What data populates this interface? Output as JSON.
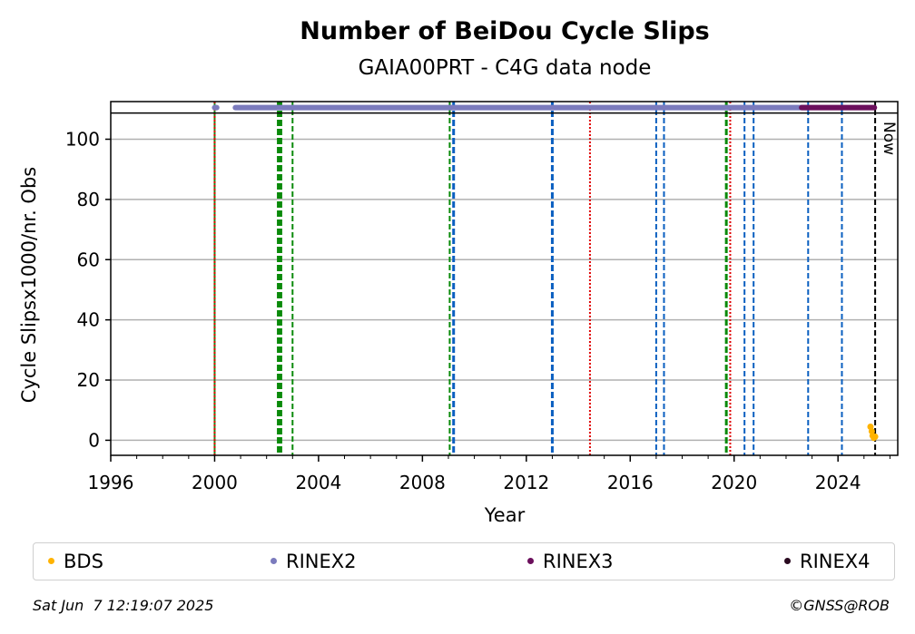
{
  "chart_data": {
    "type": "scatter",
    "title": "Number of BeiDou Cycle Slips",
    "subtitle": "GAIA00PRT - C4G data node",
    "xlabel": "Year",
    "ylabel": "Cycle Slipsx1000/nr. Obs",
    "xlim": [
      1996,
      2026.3
    ],
    "ylim": [
      -5,
      112.5
    ],
    "x_ticks": [
      1996,
      2000,
      2004,
      2008,
      2012,
      2016,
      2020,
      2024
    ],
    "y_ticks": [
      0,
      20,
      40,
      60,
      80,
      100
    ],
    "grid": "horizontal",
    "legend_position": "bottom",
    "now_label": "Now",
    "now_x": 2025.43,
    "top_band_y": 110.5,
    "series": [
      {
        "name": "BDS",
        "color": "#ffb300",
        "points": [
          [
            2025.25,
            4.5
          ],
          [
            2025.3,
            3
          ],
          [
            2025.33,
            1.5
          ],
          [
            2025.38,
            0.8
          ],
          [
            2025.43,
            1.2
          ]
        ]
      },
      {
        "name": "RINEX2",
        "color": "#7b7bbd",
        "band": [
          [
            2000.0,
            2000.08
          ],
          [
            2000.8,
            2022.8
          ]
        ]
      },
      {
        "name": "RINEX3",
        "color": "#6b0f5c",
        "band": [
          [
            2022.6,
            2025.4
          ]
        ]
      },
      {
        "name": "RINEX4",
        "color": "#2a0a20",
        "band": []
      }
    ],
    "events": [
      {
        "x": 2000.0,
        "color": "#1a8a1a",
        "style": "solid"
      },
      {
        "x": 2000.0,
        "color": "#e00000",
        "style": "dotted"
      },
      {
        "x": 2002.45,
        "color": "#0a8a0a",
        "style": "dashed-bold"
      },
      {
        "x": 2002.55,
        "color": "#0a8a0a",
        "style": "dashed-bold"
      },
      {
        "x": 2003.0,
        "color": "#0a8a0a",
        "style": "dashed"
      },
      {
        "x": 2009.05,
        "color": "#0a8a0a",
        "style": "dashed"
      },
      {
        "x": 2009.2,
        "color": "#0a5fc0",
        "style": "dashed-bold"
      },
      {
        "x": 2013.0,
        "color": "#0a5fc0",
        "style": "dashed-bold"
      },
      {
        "x": 2014.45,
        "color": "#e00000",
        "style": "dotted"
      },
      {
        "x": 2017.0,
        "color": "#0a5fc0",
        "style": "dashed"
      },
      {
        "x": 2017.3,
        "color": "#0a5fc0",
        "style": "dashed"
      },
      {
        "x": 2019.7,
        "color": "#0a8a0a",
        "style": "dashed-bold"
      },
      {
        "x": 2019.85,
        "color": "#e00000",
        "style": "dotted"
      },
      {
        "x": 2020.4,
        "color": "#0a5fc0",
        "style": "dashed"
      },
      {
        "x": 2020.75,
        "color": "#0a5fc0",
        "style": "dashed"
      },
      {
        "x": 2022.85,
        "color": "#0a5fc0",
        "style": "dashed"
      },
      {
        "x": 2024.15,
        "color": "#0a5fc0",
        "style": "dashed"
      },
      {
        "x": 2025.43,
        "color": "#000000",
        "style": "dashed"
      }
    ]
  },
  "legend": [
    {
      "label": "BDS",
      "color": "#ffb300"
    },
    {
      "label": "RINEX2",
      "color": "#7b7bbd"
    },
    {
      "label": "RINEX3",
      "color": "#6b0f5c"
    },
    {
      "label": "RINEX4",
      "color": "#2a0a20"
    }
  ],
  "footer": {
    "date": "Sat Jun  7 12:19:07 2025",
    "credit": "©GNSS@ROB"
  }
}
